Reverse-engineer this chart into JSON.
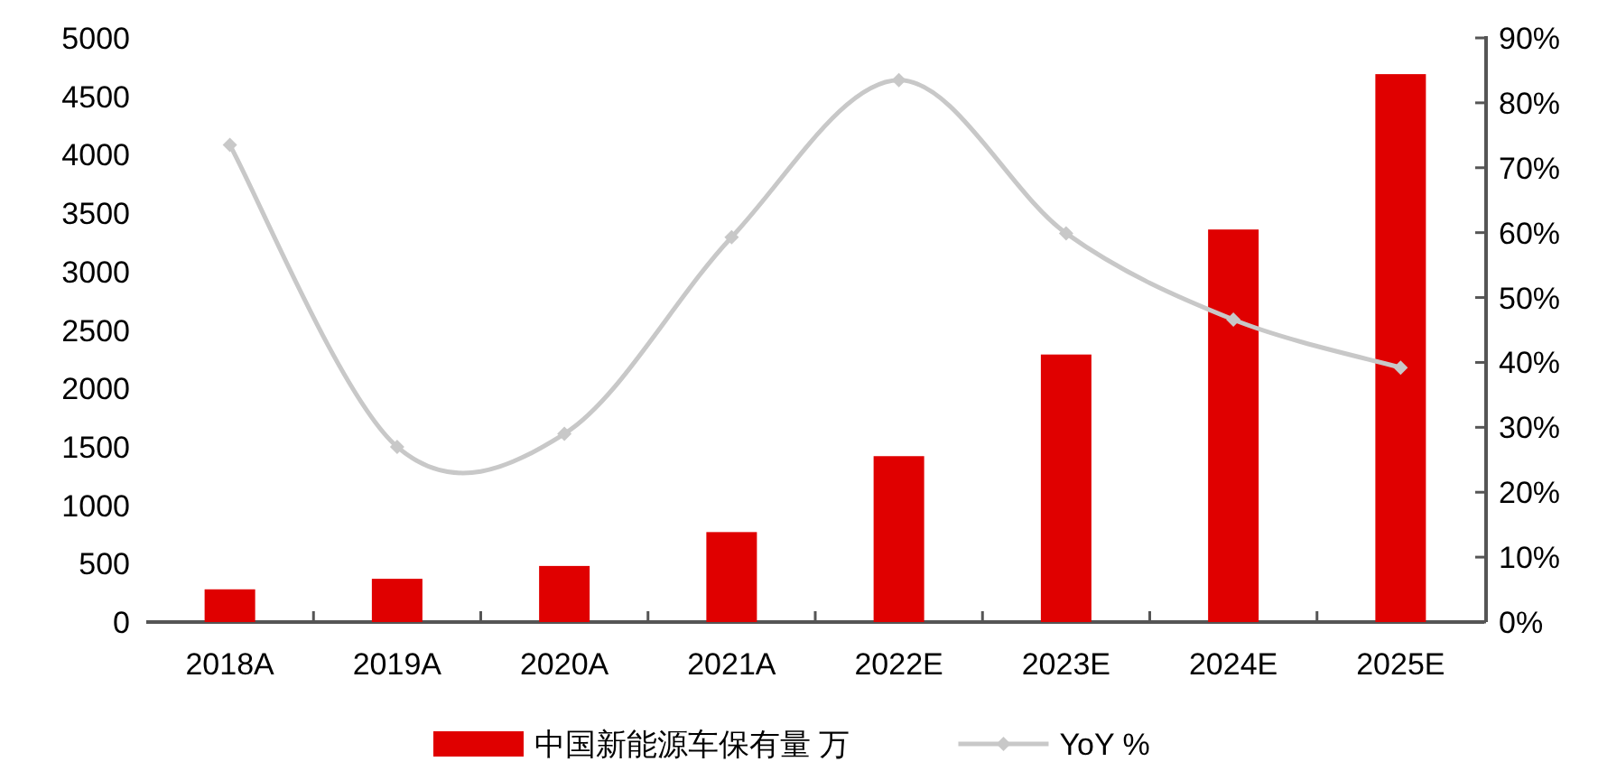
{
  "chart_data": {
    "type": "bar",
    "categories": [
      "2018A",
      "2019A",
      "2020A",
      "2021A",
      "2022E",
      "2023E",
      "2024E",
      "2025E"
    ],
    "series": [
      {
        "name": "中国新能源车保有量 万",
        "color": "#e00000",
        "values": [
          280,
          370,
          480,
          770,
          1420,
          2290,
          3360,
          4690
        ]
      },
      {
        "name": "YoY %",
        "type": "line",
        "axis": "y2",
        "color": "#c8c8c8",
        "marker": "diamond",
        "values": [
          73.5,
          27.0,
          29.0,
          59.3,
          83.5,
          59.9,
          46.6,
          39.2
        ]
      }
    ],
    "ylim": [
      0,
      5000
    ],
    "yticks": [
      0,
      500,
      1000,
      1500,
      2000,
      2500,
      3000,
      3500,
      4000,
      4500,
      5000
    ],
    "y2lim": [
      0,
      90
    ],
    "y2ticks": [
      {
        "value": 0,
        "label": "0%"
      },
      {
        "value": 10,
        "label": "10%"
      },
      {
        "value": 20,
        "label": "20%"
      },
      {
        "value": 30,
        "label": "30%"
      },
      {
        "value": 40,
        "label": "40%"
      },
      {
        "value": 50,
        "label": "50%"
      },
      {
        "value": 60,
        "label": "60%"
      },
      {
        "value": 70,
        "label": "70%"
      },
      {
        "value": 80,
        "label": "80%"
      },
      {
        "value": 90,
        "label": "90%"
      }
    ],
    "legend": "bottom",
    "grid": false
  }
}
